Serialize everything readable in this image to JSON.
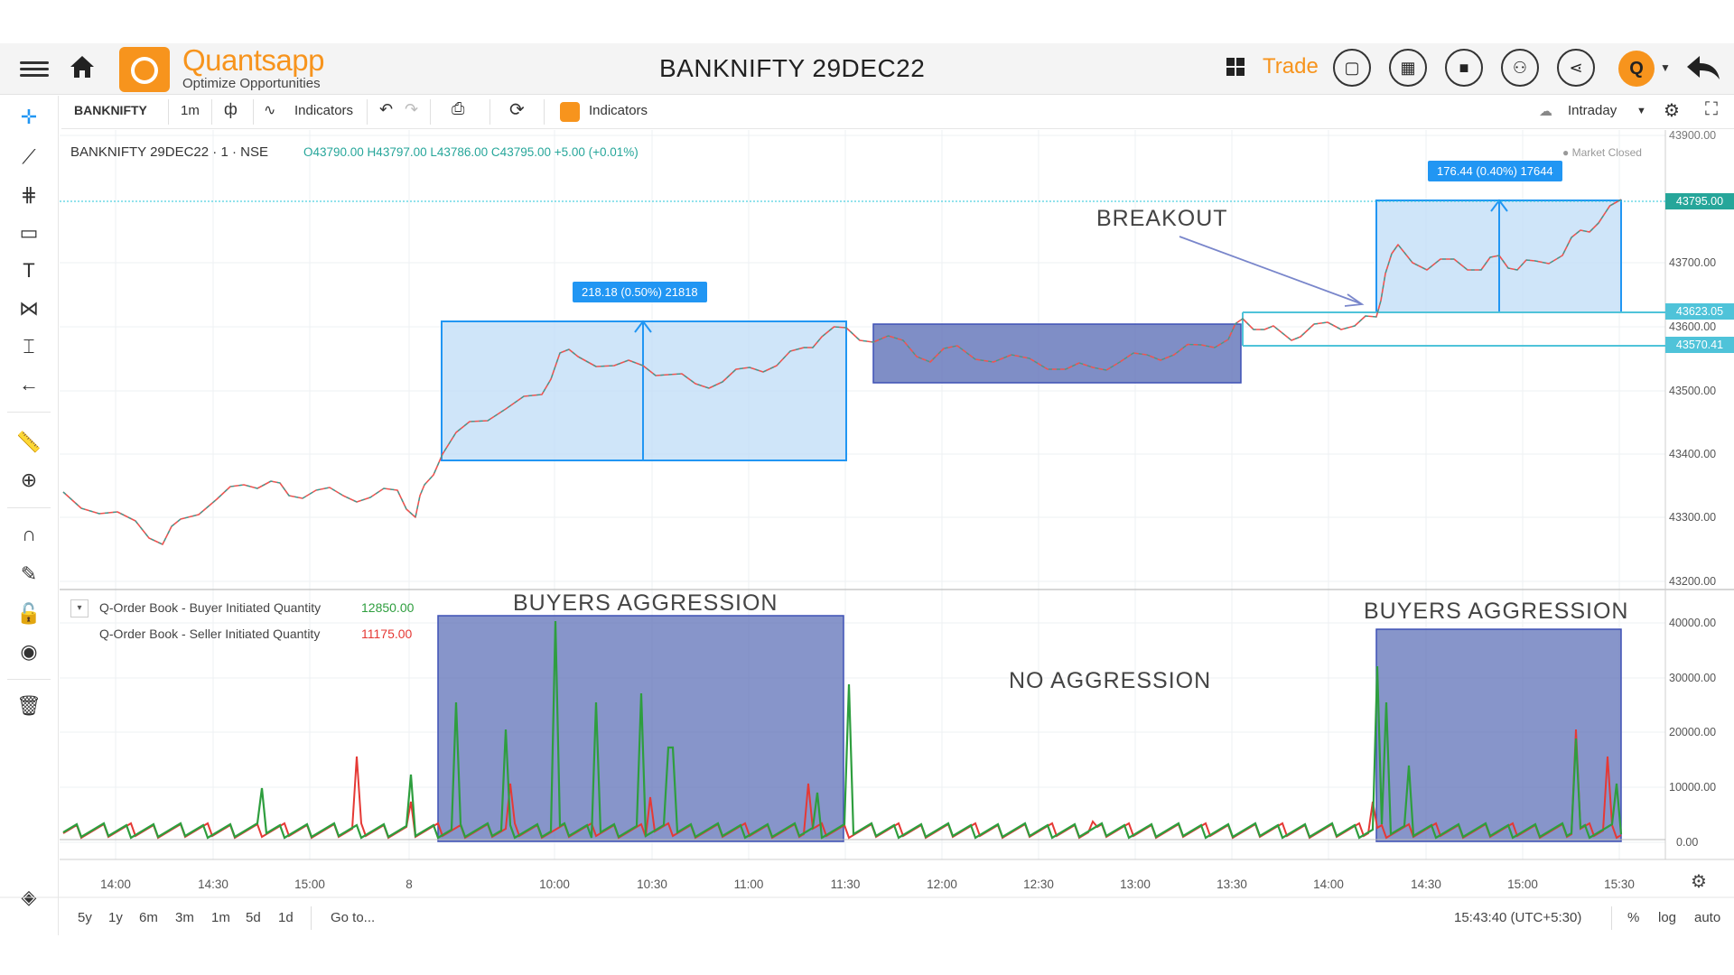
{
  "header": {
    "brand": "Quantsapp",
    "tagline": "Optimize Opportunities",
    "title": "BANKNIFTY 29DEC22",
    "trade_label": "Trade",
    "avatar_initial": "Q"
  },
  "toolbar": {
    "symbol": "BANKNIFTY",
    "interval": "1m",
    "indicators_label": "Indicators",
    "q_indicators_label": "Indicators",
    "session": "Intraday"
  },
  "legend": {
    "title": "BANKNIFTY 29DEC22 · 1 · NSE",
    "ohlc": "O43790.00  H43797.00  L43786.00  C43795.00  +5.00 (+0.01%)",
    "market_status": "● Market Closed",
    "buyer_label": "Q-Order Book - Buyer Initiated Quantity",
    "buyer_value": "12850.00",
    "seller_label": "Q-Order Book - Seller Initiated Quantity",
    "seller_value": "11175.00"
  },
  "annotations": {
    "breakout": "BREAKOUT",
    "buyers_aggression_1": "BUYERS AGGRESSION",
    "buyers_aggression_2": "BUYERS AGGRESSION",
    "no_aggression": "NO AGGRESSION",
    "measure_1": "218.18 (0.50%) 21818",
    "measure_2": "176.44 (0.40%) 17644"
  },
  "price_axis": {
    "ticks": [
      "43900.00",
      "43700.00",
      "43600.00",
      "43500.00",
      "43400.00",
      "43300.00",
      "43200.00"
    ],
    "current_price": "43795.00",
    "level_high": "43623.05",
    "level_low": "43570.41"
  },
  "volume_axis": {
    "ticks": [
      "40000.00",
      "30000.00",
      "20000.00",
      "10000.00",
      "0.00"
    ]
  },
  "time_axis": {
    "ticks": [
      "14:00",
      "14:30",
      "15:00",
      "8",
      "10:00",
      "10:30",
      "11:00",
      "11:30",
      "12:00",
      "12:30",
      "13:00",
      "13:30",
      "14:00",
      "14:30",
      "15:00",
      "15:30"
    ]
  },
  "bottom_bar": {
    "ranges": [
      "5y",
      "1y",
      "6m",
      "3m",
      "1m",
      "5d",
      "1d"
    ],
    "goto": "Go to...",
    "clock": "15:43:40 (UTC+5:30)",
    "pct": "%",
    "log": "log",
    "auto": "auto"
  },
  "colors": {
    "accent": "#f7941d",
    "up": "#26a69a",
    "down": "#ef5350",
    "buyer_line": "#2e9e3e",
    "seller_line": "#e53935",
    "range_box": "#bfdcf7",
    "aggression_box": "#5f72b8",
    "measure": "#2196f3"
  }
}
